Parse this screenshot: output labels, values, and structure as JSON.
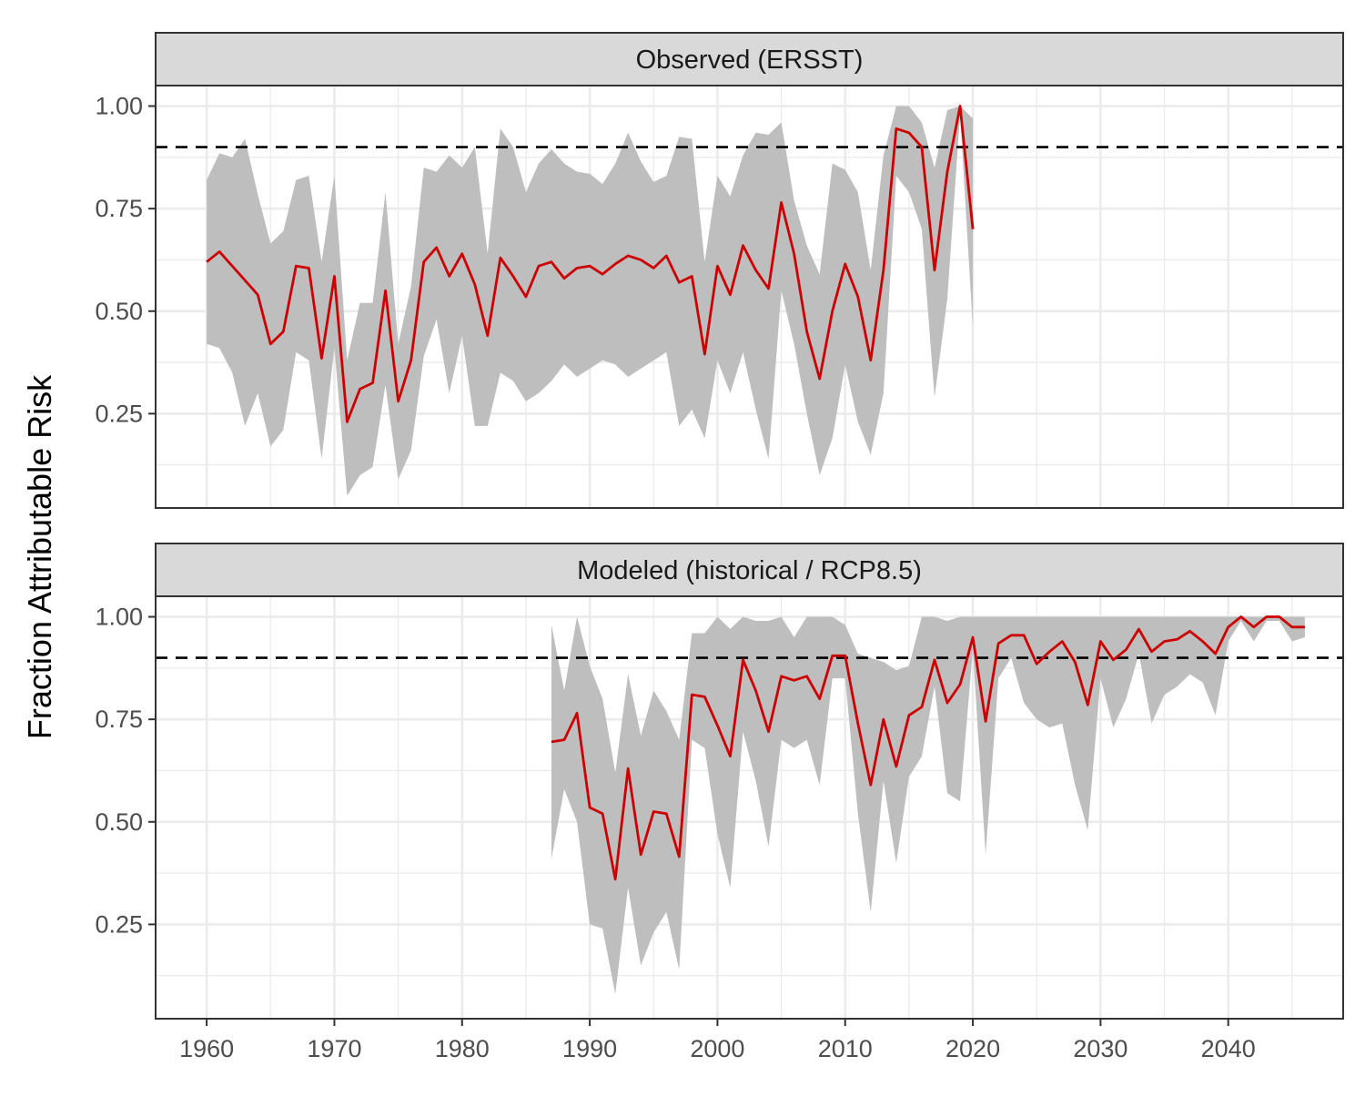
{
  "chart_data": {
    "type": "line",
    "ylabel": "Fraction Attributable Risk",
    "xlabel": "",
    "xlim": [
      1956,
      2049
    ],
    "ylim": [
      0.02,
      1.05
    ],
    "x_ticks": [
      1960,
      1970,
      1980,
      1990,
      2000,
      2010,
      2020,
      2030,
      2040
    ],
    "y_ticks": [
      0.25,
      0.5,
      0.75,
      1.0
    ],
    "y_tick_labels": [
      "0.25",
      "0.50",
      "0.75",
      "1.00"
    ],
    "threshold": 0.9,
    "grid": true,
    "colors": {
      "line": "#cc0000",
      "ribbon": "#bebebe",
      "strip": "#d9d9d9",
      "grid": "#ebebeb"
    },
    "panels": [
      {
        "title": "Observed (ERSST)",
        "years": [
          1960,
          1961,
          1962,
          1963,
          1964,
          1965,
          1966,
          1967,
          1968,
          1969,
          1970,
          1971,
          1972,
          1973,
          1974,
          1975,
          1976,
          1977,
          1978,
          1979,
          1980,
          1981,
          1982,
          1983,
          1984,
          1985,
          1986,
          1987,
          1988,
          1989,
          1990,
          1991,
          1992,
          1993,
          1994,
          1995,
          1996,
          1997,
          1998,
          1999,
          2000,
          2001,
          2002,
          2003,
          2004,
          2005,
          2006,
          2007,
          2008,
          2009,
          2010,
          2011,
          2012,
          2013,
          2014,
          2015,
          2016,
          2017,
          2018,
          2019,
          2020
        ],
        "values": [
          0.62,
          0.645,
          0.61,
          0.575,
          0.54,
          0.42,
          0.45,
          0.61,
          0.605,
          0.385,
          0.585,
          0.23,
          0.31,
          0.325,
          0.55,
          0.28,
          0.38,
          0.62,
          0.655,
          0.585,
          0.64,
          0.565,
          0.44,
          0.63,
          0.585,
          0.535,
          0.61,
          0.62,
          0.58,
          0.605,
          0.61,
          0.59,
          0.615,
          0.635,
          0.625,
          0.605,
          0.635,
          0.57,
          0.585,
          0.395,
          0.61,
          0.54,
          0.66,
          0.6,
          0.555,
          0.765,
          0.64,
          0.45,
          0.335,
          0.5,
          0.615,
          0.535,
          0.38,
          0.6,
          0.945,
          0.935,
          0.9,
          0.6,
          0.84,
          1.0,
          0.7
        ],
        "lower": [
          0.42,
          0.41,
          0.35,
          0.22,
          0.3,
          0.17,
          0.21,
          0.4,
          0.38,
          0.14,
          0.41,
          0.05,
          0.1,
          0.12,
          0.32,
          0.09,
          0.16,
          0.39,
          0.48,
          0.3,
          0.44,
          0.22,
          0.22,
          0.35,
          0.33,
          0.28,
          0.3,
          0.33,
          0.37,
          0.34,
          0.36,
          0.38,
          0.37,
          0.34,
          0.36,
          0.38,
          0.4,
          0.22,
          0.26,
          0.19,
          0.38,
          0.3,
          0.4,
          0.26,
          0.14,
          0.55,
          0.42,
          0.25,
          0.1,
          0.19,
          0.37,
          0.23,
          0.15,
          0.3,
          0.83,
          0.79,
          0.7,
          0.29,
          0.53,
          0.98,
          0.46
        ],
        "upper": [
          0.82,
          0.885,
          0.875,
          0.92,
          0.785,
          0.665,
          0.695,
          0.82,
          0.83,
          0.62,
          0.83,
          0.38,
          0.52,
          0.52,
          0.79,
          0.42,
          0.56,
          0.85,
          0.84,
          0.88,
          0.85,
          0.9,
          0.64,
          0.945,
          0.9,
          0.79,
          0.86,
          0.895,
          0.86,
          0.84,
          0.835,
          0.81,
          0.86,
          0.935,
          0.865,
          0.815,
          0.83,
          0.925,
          0.92,
          0.62,
          0.83,
          0.78,
          0.88,
          0.935,
          0.93,
          0.96,
          0.77,
          0.66,
          0.59,
          0.86,
          0.845,
          0.79,
          0.6,
          0.88,
          1.0,
          1.0,
          0.96,
          0.85,
          0.99,
          1.0,
          0.97
        ]
      },
      {
        "title": "Modeled (historical / RCP8.5)",
        "years": [
          1987,
          1988,
          1989,
          1990,
          1991,
          1992,
          1993,
          1994,
          1995,
          1996,
          1997,
          1998,
          1999,
          2000,
          2001,
          2002,
          2003,
          2004,
          2005,
          2006,
          2007,
          2008,
          2009,
          2010,
          2011,
          2012,
          2013,
          2014,
          2015,
          2016,
          2017,
          2018,
          2019,
          2020,
          2021,
          2022,
          2023,
          2024,
          2025,
          2026,
          2027,
          2028,
          2029,
          2030,
          2031,
          2032,
          2033,
          2034,
          2035,
          2036,
          2037,
          2038,
          2039,
          2040,
          2041,
          2042,
          2043,
          2044,
          2045,
          2046
        ],
        "values": [
          0.695,
          0.7,
          0.765,
          0.535,
          0.52,
          0.36,
          0.63,
          0.42,
          0.525,
          0.52,
          0.415,
          0.81,
          0.805,
          0.735,
          0.66,
          0.895,
          0.82,
          0.72,
          0.855,
          0.845,
          0.855,
          0.8,
          0.905,
          0.905,
          0.74,
          0.59,
          0.75,
          0.635,
          0.76,
          0.78,
          0.895,
          0.79,
          0.835,
          0.95,
          0.745,
          0.935,
          0.955,
          0.955,
          0.885,
          0.915,
          0.94,
          0.89,
          0.785,
          0.94,
          0.895,
          0.92,
          0.97,
          0.915,
          0.94,
          0.945,
          0.965,
          0.94,
          0.91,
          0.975,
          1.0,
          0.975,
          1.0,
          1.0,
          0.975,
          0.975
        ],
        "lower": [
          0.41,
          0.58,
          0.5,
          0.25,
          0.24,
          0.08,
          0.34,
          0.15,
          0.23,
          0.28,
          0.14,
          0.7,
          0.68,
          0.47,
          0.34,
          0.72,
          0.6,
          0.44,
          0.7,
          0.68,
          0.7,
          0.59,
          0.85,
          0.85,
          0.52,
          0.28,
          0.6,
          0.4,
          0.61,
          0.66,
          0.83,
          0.57,
          0.55,
          0.92,
          0.42,
          0.85,
          0.9,
          0.79,
          0.75,
          0.73,
          0.74,
          0.59,
          0.48,
          0.85,
          0.73,
          0.8,
          0.91,
          0.74,
          0.81,
          0.83,
          0.86,
          0.84,
          0.76,
          0.94,
          0.99,
          0.94,
          0.99,
          0.99,
          0.94,
          0.95
        ],
        "upper": [
          0.98,
          0.82,
          1.0,
          0.88,
          0.8,
          0.62,
          0.86,
          0.71,
          0.82,
          0.77,
          0.7,
          0.96,
          0.96,
          1.0,
          0.97,
          1.0,
          0.99,
          0.99,
          1.0,
          0.95,
          1.0,
          1.0,
          1.0,
          0.98,
          0.91,
          0.9,
          0.89,
          0.87,
          0.88,
          1.0,
          1.0,
          0.99,
          1.0,
          1.0,
          1.0,
          1.0,
          1.0,
          1.0,
          1.0,
          1.0,
          1.0,
          1.0,
          1.0,
          1.0,
          1.0,
          1.0,
          1.0,
          1.0,
          1.0,
          1.0,
          1.0,
          1.0,
          1.0,
          1.0,
          1.0,
          1.0,
          1.0,
          1.0,
          1.0,
          1.0
        ]
      }
    ]
  }
}
